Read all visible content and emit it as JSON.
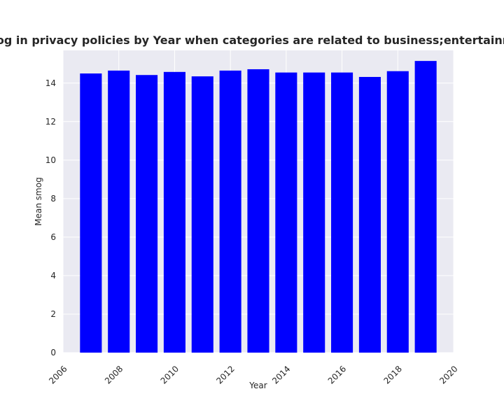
{
  "chart_data": {
    "type": "bar",
    "title": "Mean smog in privacy policies by Year when categories are related to business;entertainment;travel",
    "xlabel": "Year",
    "ylabel": "Mean smog",
    "x": [
      2007,
      2008,
      2009,
      2010,
      2011,
      2012,
      2013,
      2014,
      2015,
      2016,
      2017,
      2018,
      2019
    ],
    "values": [
      14.5,
      14.65,
      14.42,
      14.58,
      14.35,
      14.65,
      14.72,
      14.55,
      14.55,
      14.55,
      14.32,
      14.62,
      15.15
    ],
    "xlim": [
      2006,
      2020
    ],
    "ylim": [
      0,
      15.7
    ],
    "xticks": [
      2006,
      2008,
      2010,
      2012,
      2014,
      2016,
      2018,
      2020
    ],
    "yticks": [
      0,
      2,
      4,
      6,
      8,
      10,
      12,
      14
    ],
    "grid": true,
    "bar_color": "#0000ff",
    "background_color": "#eaeaf2"
  }
}
